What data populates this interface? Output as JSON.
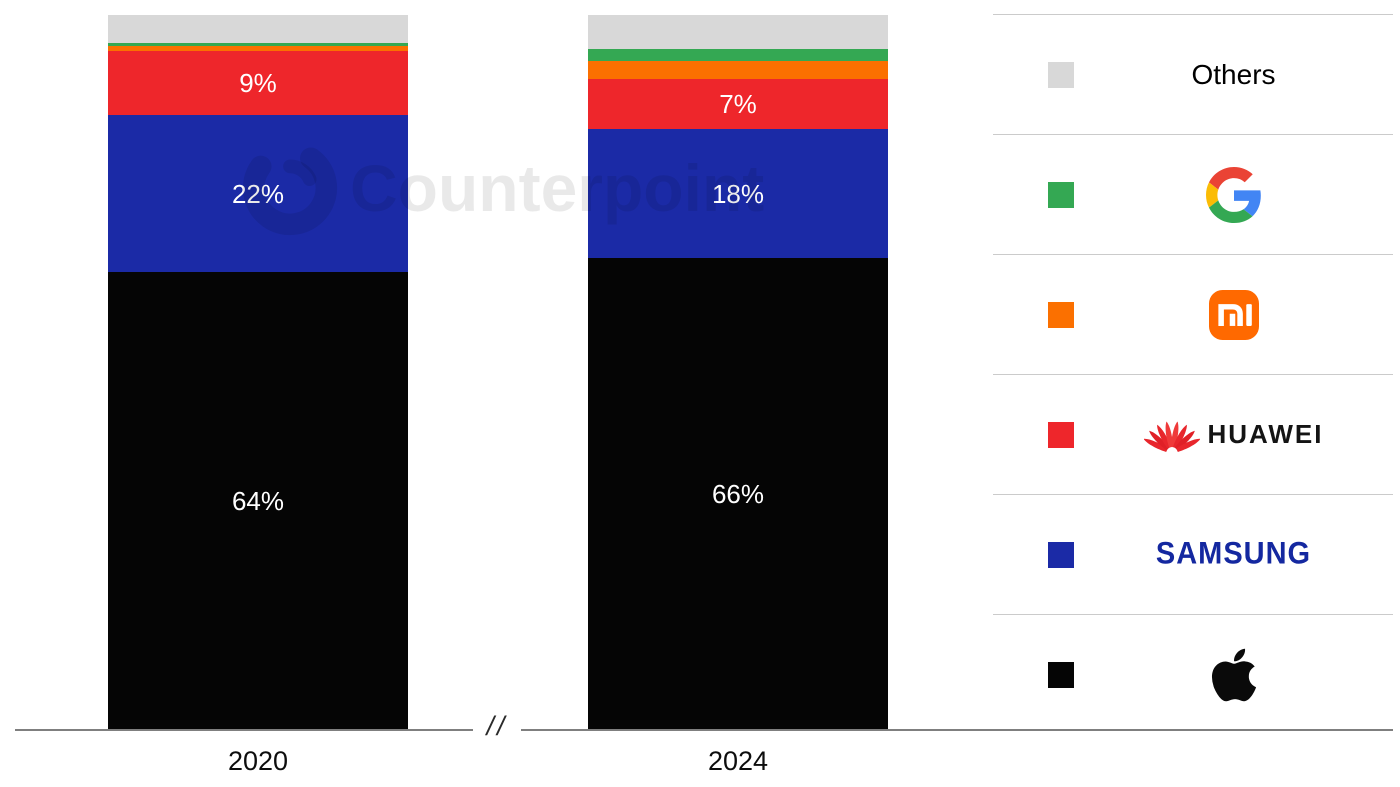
{
  "chart_data": {
    "type": "bar",
    "subtype": "100%-stacked-column",
    "title": "",
    "categories": [
      "2020",
      "2024"
    ],
    "unit": "percent market share",
    "ylim": [
      0,
      100
    ],
    "grid": false,
    "legend_position": "right",
    "axis_break_symbol": "//",
    "series": [
      {
        "name": "Others",
        "color": "#D8D8D8",
        "values": [
          3.9,
          4.8
        ],
        "labels": [
          "",
          ""
        ]
      },
      {
        "name": "Google",
        "color": "#34A853",
        "values": [
          0.4,
          1.7
        ],
        "labels": [
          "",
          ""
        ]
      },
      {
        "name": "Xiaomi",
        "color": "#FB7000",
        "values": [
          0.7,
          2.5
        ],
        "labels": [
          "",
          ""
        ]
      },
      {
        "name": "Huawei",
        "color": "#EE262B",
        "values": [
          9,
          7
        ],
        "labels": [
          "9%",
          "7%"
        ]
      },
      {
        "name": "Samsung",
        "color": "#1B2AA6",
        "values": [
          22,
          18
        ],
        "labels": [
          "22%",
          "18%"
        ]
      },
      {
        "name": "Apple",
        "color": "#050505",
        "values": [
          64,
          66
        ],
        "labels": [
          "64%",
          "66%"
        ]
      }
    ]
  },
  "legend": {
    "items": [
      {
        "name": "Others",
        "swatch_color": "#D8D8D8",
        "label": "Others"
      },
      {
        "name": "Google",
        "swatch_color": "#34A853",
        "label": ""
      },
      {
        "name": "Xiaomi",
        "swatch_color": "#FB7000",
        "label": ""
      },
      {
        "name": "Huawei",
        "swatch_color": "#EE262B",
        "label": "HUAWEI"
      },
      {
        "name": "Samsung",
        "swatch_color": "#1B2AA6",
        "label": "SAMSUNG"
      },
      {
        "name": "Apple",
        "swatch_color": "#050505",
        "label": ""
      }
    ]
  },
  "watermark": {
    "text": "Counterpoint",
    "opacity": 0.085
  }
}
